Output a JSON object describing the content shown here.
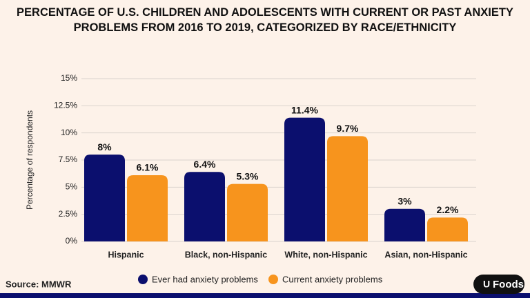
{
  "chart_data": {
    "type": "bar",
    "title": "PERCENTAGE OF U.S. CHILDREN AND ADOLESCENTS WITH CURRENT OR PAST ANXIETY PROBLEMS FROM 2016 TO 2019, CATEGORIZED BY RACE/ETHNICITY",
    "y_label": "Percentage of respondents",
    "categories": [
      "Hispanic",
      "Black, non-Hispanic",
      "White, non-Hispanic",
      "Asian, non-Hispanic"
    ],
    "series": [
      {
        "name": "Ever had anxiety problems",
        "color": "#0b0f6e",
        "values": [
          8,
          6.4,
          11.4,
          3
        ],
        "value_labels": [
          "8%",
          "6.4%",
          "11.4%",
          "3%"
        ]
      },
      {
        "name": "Current anxiety problems",
        "color": "#f7941d",
        "values": [
          6.1,
          5.3,
          9.7,
          2.2
        ],
        "value_labels": [
          "6.1%",
          "5.3%",
          "9.7%",
          "2.2%"
        ]
      }
    ],
    "ylim": [
      0,
      15
    ],
    "yticks": [
      {
        "value": 0,
        "label": "0%"
      },
      {
        "value": 2.5,
        "label": "2.5%"
      },
      {
        "value": 5,
        "label": "5%"
      },
      {
        "value": 7.5,
        "label": "7.5%"
      },
      {
        "value": 10,
        "label": "10%"
      },
      {
        "value": 12.5,
        "label": "12.5%"
      },
      {
        "value": 15,
        "label": "15%"
      }
    ],
    "grid": true,
    "source": "Source: MMWR",
    "brand": "Foods"
  }
}
